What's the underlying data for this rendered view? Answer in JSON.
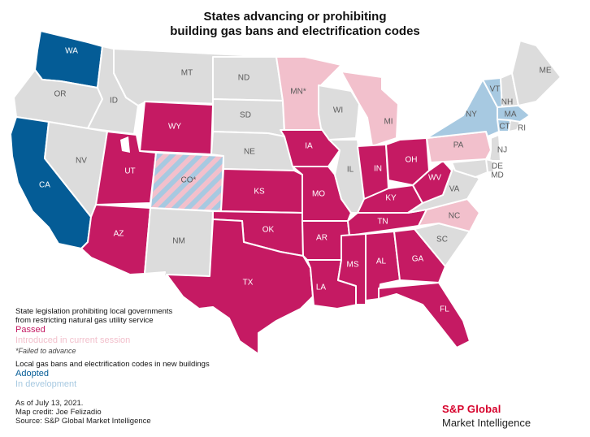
{
  "title": {
    "line1": "States advancing or prohibiting",
    "line2": "building gas bans and electrification codes"
  },
  "colors": {
    "passed": "#c51a63",
    "introduced": "#f2c0cc",
    "adopted": "#045c96",
    "in_development": "#a7c9e1",
    "none": "#dcdcdc",
    "hatch_a": "#f2c0cc",
    "hatch_b": "#a7c9e1"
  },
  "states": [
    {
      "abbr": "WA",
      "status": "adopted"
    },
    {
      "abbr": "OR",
      "status": "none"
    },
    {
      "abbr": "CA",
      "status": "adopted"
    },
    {
      "abbr": "ID",
      "status": "none"
    },
    {
      "abbr": "NV",
      "status": "none"
    },
    {
      "abbr": "MT",
      "status": "none"
    },
    {
      "abbr": "WY",
      "status": "passed"
    },
    {
      "abbr": "UT",
      "status": "passed"
    },
    {
      "abbr": "CO*",
      "status": "introduced_and_in_development"
    },
    {
      "abbr": "AZ",
      "status": "passed"
    },
    {
      "abbr": "NM",
      "status": "none"
    },
    {
      "abbr": "ND",
      "status": "none"
    },
    {
      "abbr": "SD",
      "status": "none"
    },
    {
      "abbr": "NE",
      "status": "none"
    },
    {
      "abbr": "KS",
      "status": "passed"
    },
    {
      "abbr": "OK",
      "status": "passed"
    },
    {
      "abbr": "TX",
      "status": "passed"
    },
    {
      "abbr": "MN*",
      "status": "introduced"
    },
    {
      "abbr": "IA",
      "status": "passed"
    },
    {
      "abbr": "MO",
      "status": "passed"
    },
    {
      "abbr": "AR",
      "status": "passed"
    },
    {
      "abbr": "LA",
      "status": "passed"
    },
    {
      "abbr": "WI",
      "status": "none"
    },
    {
      "abbr": "IL",
      "status": "none"
    },
    {
      "abbr": "MI",
      "status": "introduced"
    },
    {
      "abbr": "IN",
      "status": "passed"
    },
    {
      "abbr": "OH",
      "status": "passed"
    },
    {
      "abbr": "KY",
      "status": "passed"
    },
    {
      "abbr": "TN",
      "status": "passed"
    },
    {
      "abbr": "MS",
      "status": "passed"
    },
    {
      "abbr": "AL",
      "status": "passed"
    },
    {
      "abbr": "GA",
      "status": "passed"
    },
    {
      "abbr": "FL",
      "status": "passed"
    },
    {
      "abbr": "SC",
      "status": "none"
    },
    {
      "abbr": "NC",
      "status": "introduced"
    },
    {
      "abbr": "VA",
      "status": "none"
    },
    {
      "abbr": "WV",
      "status": "passed"
    },
    {
      "abbr": "PA",
      "status": "introduced"
    },
    {
      "abbr": "NY",
      "status": "in_development"
    },
    {
      "abbr": "VT",
      "status": "in_development"
    },
    {
      "abbr": "NH",
      "status": "none"
    },
    {
      "abbr": "ME",
      "status": "none"
    },
    {
      "abbr": "MA",
      "status": "in_development"
    },
    {
      "abbr": "CT",
      "status": "in_development"
    },
    {
      "abbr": "RI",
      "status": "none"
    },
    {
      "abbr": "NJ",
      "status": "none"
    },
    {
      "abbr": "DE",
      "status": "none"
    },
    {
      "abbr": "MD",
      "status": "none"
    }
  ],
  "legend": {
    "section1_line1": "State legislation prohibiting local governments",
    "section1_line2": "from restricting natural gas utility service",
    "passed": "Passed",
    "introduced": "Introduced in current session",
    "failed_note": "*Failed to advance",
    "section2": "Local gas bans and electrification codes in new buildings",
    "adopted": "Adopted",
    "in_development": "In development"
  },
  "footer": {
    "date": "As of July 13, 2021.",
    "credit": "Map credit: Joe Felizadio",
    "source": "Source: S&P Global Market Intelligence"
  },
  "logo": {
    "brand": "S&P Global",
    "division": "Market Intelligence"
  }
}
